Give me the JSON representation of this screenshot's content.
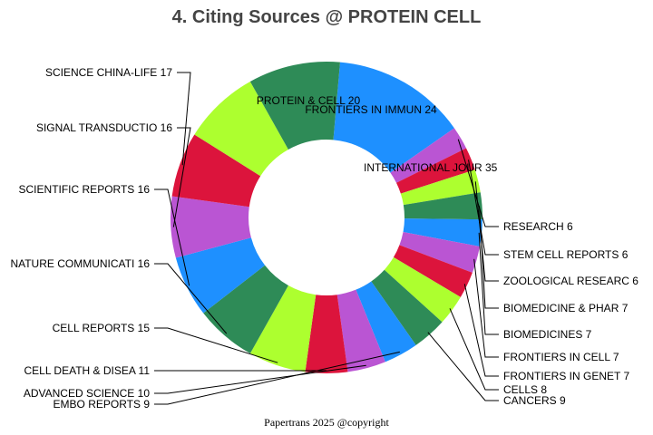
{
  "chart_data": {
    "type": "pie",
    "donut": true,
    "title": "4. Citing Sources @ PROTEIN CELL",
    "footer": "Papertrans 2025 @copyright",
    "slices": [
      {
        "label": "INTERNATIONAL JOUR 35",
        "value": 35,
        "color": "#1e90ff"
      },
      {
        "label": "RESEARCH 6",
        "value": 6,
        "color": "#ba55d3"
      },
      {
        "label": "STEM CELL REPORTS 6",
        "value": 6,
        "color": "#dc143c"
      },
      {
        "label": "ZOOLOGICAL RESEARC 6",
        "value": 6,
        "color": "#adff2f"
      },
      {
        "label": "BIOMEDICINE & PHAR 7",
        "value": 7,
        "color": "#2e8b57"
      },
      {
        "label": "BIOMEDICINES 7",
        "value": 7,
        "color": "#1e90ff"
      },
      {
        "label": "FRONTIERS IN CELL  7",
        "value": 7,
        "color": "#ba55d3"
      },
      {
        "label": "FRONTIERS IN GENET 7",
        "value": 7,
        "color": "#dc143c"
      },
      {
        "label": "CELLS 8",
        "value": 8,
        "color": "#adff2f"
      },
      {
        "label": "CANCERS 9",
        "value": 9,
        "color": "#2e8b57"
      },
      {
        "label": "EMBO REPORTS 9",
        "value": 9,
        "color": "#1e90ff"
      },
      {
        "label": "ADVANCED SCIENCE 10",
        "value": 10,
        "color": "#ba55d3"
      },
      {
        "label": "CELL DEATH & DISEA 11",
        "value": 11,
        "color": "#dc143c"
      },
      {
        "label": "CELL REPORTS 15",
        "value": 15,
        "color": "#adff2f"
      },
      {
        "label": "NATURE COMMUNICATI 16",
        "value": 16,
        "color": "#2e8b57"
      },
      {
        "label": "SCIENTIFIC REPORTS 16",
        "value": 16,
        "color": "#1e90ff"
      },
      {
        "label": "SIGNAL TRANSDUCTIO 16",
        "value": 16,
        "color": "#ba55d3"
      },
      {
        "label": "SCIENCE CHINA-LIFE 17",
        "value": 17,
        "color": "#dc143c"
      },
      {
        "label": "PROTEIN & CELL 20",
        "value": 20,
        "color": "#adff2f"
      },
      {
        "label": "FRONTIERS IN IMMUN 24",
        "value": 24,
        "color": "#2e8b57"
      }
    ]
  }
}
